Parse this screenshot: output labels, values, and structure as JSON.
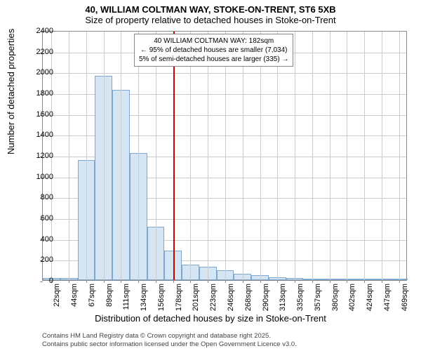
{
  "chart": {
    "type": "histogram",
    "title": "40, WILLIAM COLTMAN WAY, STOKE-ON-TRENT, ST6 5XB",
    "subtitle": "Size of property relative to detached houses in Stoke-on-Trent",
    "ylabel": "Number of detached properties",
    "xlabel": "Distribution of detached houses by size in Stoke-on-Trent",
    "ylim": [
      0,
      2400
    ],
    "ytick_step": 200,
    "x_categories": [
      "22sqm",
      "44sqm",
      "67sqm",
      "89sqm",
      "111sqm",
      "134sqm",
      "156sqm",
      "178sqm",
      "201sqm",
      "223sqm",
      "246sqm",
      "268sqm",
      "290sqm",
      "313sqm",
      "335sqm",
      "357sqm",
      "380sqm",
      "402sqm",
      "424sqm",
      "447sqm",
      "469sqm"
    ],
    "values": [
      20,
      20,
      1150,
      1960,
      1830,
      1220,
      510,
      280,
      150,
      130,
      95,
      60,
      50,
      30,
      20,
      15,
      10,
      8,
      5,
      5,
      3
    ],
    "bar_fill": "#d6e5f4",
    "bar_border": "#7fa8d0",
    "background_color": "#ffffff",
    "grid_color": "#cccccc",
    "reference_line": {
      "value_index": 7,
      "color": "#cc0000"
    },
    "annotation": {
      "line1": "40 WILLIAM COLTMAN WAY: 182sqm",
      "line2": "← 95% of detached houses are smaller (7,034)",
      "line3": "5% of semi-detached houses are larger (335) →"
    },
    "title_fontsize": 13,
    "label_fontsize": 13,
    "tick_fontsize": 11,
    "footer1": "Contains HM Land Registry data © Crown copyright and database right 2025.",
    "footer2": "Contains public sector information licensed under the Open Government Licence v3.0."
  }
}
